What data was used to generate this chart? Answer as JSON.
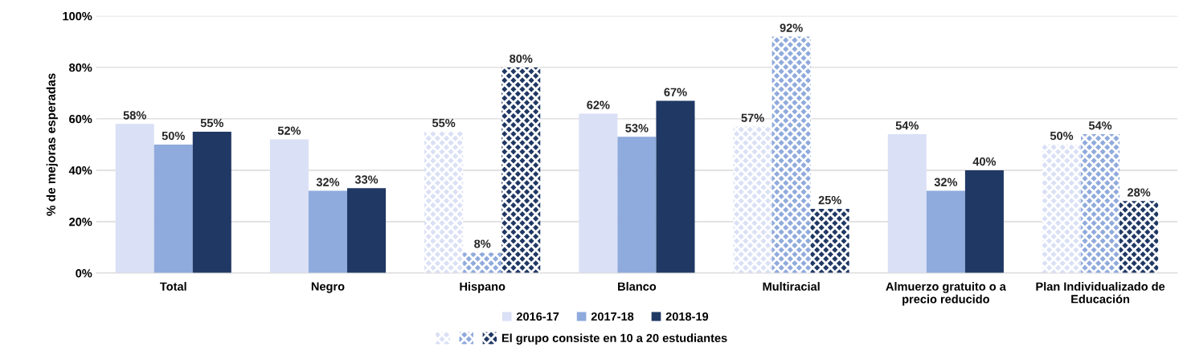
{
  "chart_data": {
    "type": "bar",
    "ylabel": "% de mejoras esperadas",
    "categories": [
      "Total",
      "Negro",
      "Hispano",
      "Blanco",
      "Multiracial",
      "Almuerzo gratuito o a\nprecio reducido",
      "Plan Individualizado de\nEducación"
    ],
    "series": [
      {
        "name": "2016-17",
        "color": "#dae0f5",
        "values": [
          58,
          52,
          null,
          62,
          null,
          54,
          null
        ],
        "value_labels": [
          "58%",
          "52%",
          null,
          "62%",
          null,
          "54%",
          null
        ]
      },
      {
        "name": "2017-18",
        "color": "#8faadc",
        "values": [
          50,
          32,
          null,
          53,
          null,
          32,
          null
        ],
        "value_labels": [
          "50%",
          "32%",
          null,
          "53%",
          null,
          "32%",
          null
        ]
      },
      {
        "name": "2018-19",
        "color": "#203864",
        "values": [
          55,
          33,
          null,
          67,
          null,
          40,
          null
        ],
        "value_labels": [
          "55%",
          "33%",
          null,
          "67%",
          null,
          "40%",
          null
        ]
      },
      {
        "color": "#dae0f5",
        "values": [
          null,
          null,
          55,
          null,
          57,
          null,
          50
        ],
        "value_labels": [
          null,
          null,
          "55%",
          null,
          "57%",
          null,
          "50%"
        ]
      },
      {
        "color": "#8faadc",
        "values": [
          null,
          null,
          8,
          null,
          92,
          null,
          54
        ],
        "value_labels": [
          null,
          null,
          "8%",
          null,
          "92%",
          null,
          "54%"
        ]
      },
      {
        "name": "El grupo consiste en 10 a 20 estudiantes",
        "color": "#203864",
        "values": [
          null,
          null,
          80,
          null,
          25,
          null,
          28
        ],
        "value_labels": [
          null,
          null,
          "80%",
          null,
          "25%",
          null,
          "28%"
        ]
      }
    ],
    "ylim": [
      0,
      100
    ],
    "yticks": [
      {
        "value": 0,
        "label": "0%"
      },
      {
        "value": 20,
        "label": "20%"
      },
      {
        "value": 40,
        "label": "40%"
      },
      {
        "value": 60,
        "label": "60%"
      },
      {
        "value": 80,
        "label": "80%"
      },
      {
        "value": 100,
        "label": "100%"
      }
    ],
    "grid": "y",
    "legend": "bottom"
  }
}
